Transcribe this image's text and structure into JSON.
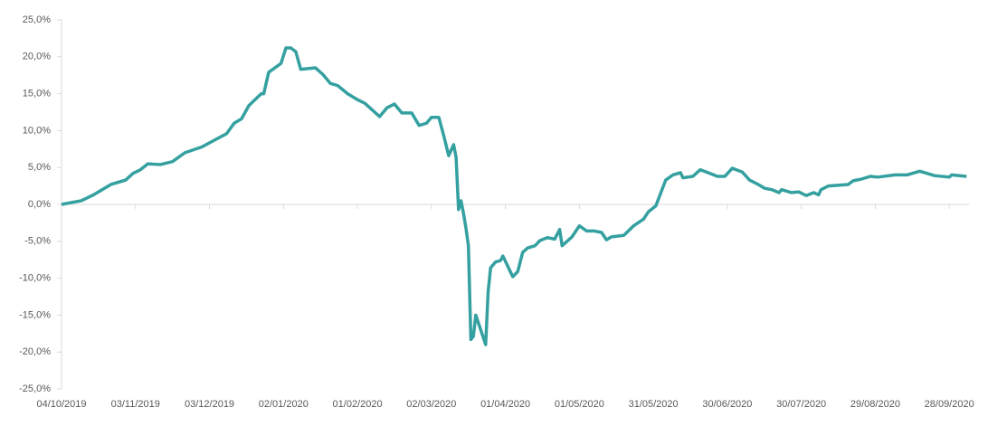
{
  "chart_data": {
    "type": "line",
    "x": [
      "04/10/2019",
      "12/10/2019",
      "17/10/2019",
      "24/10/2019",
      "30/10/2019",
      "02/11/2019",
      "05/11/2019",
      "08/11/2019",
      "13/11/2019",
      "18/11/2019",
      "23/11/2019",
      "30/11/2019",
      "05/12/2019",
      "10/12/2019",
      "13/12/2019",
      "16/12/2019",
      "19/12/2019",
      "24/12/2019",
      "25/12/2019",
      "27/12/2019",
      "01/01/2020",
      "03/01/2020",
      "05/01/2020",
      "07/01/2020",
      "09/01/2020",
      "15/01/2020",
      "18/01/2020",
      "21/01/2020",
      "24/01/2020",
      "28/01/2020",
      "01/02/2020",
      "04/02/2020",
      "10/02/2020",
      "13/02/2020",
      "16/02/2020",
      "19/02/2020",
      "23/02/2020",
      "26/02/2020",
      "29/02/2020",
      "02/03/2020",
      "05/03/2020",
      "07/03/2020",
      "09/03/2020",
      "11/03/2020",
      "12/03/2020",
      "13/03/2020",
      "14/03/2020",
      "15/03/2020",
      "16/03/2020",
      "17/03/2020",
      "18/03/2020",
      "19/03/2020",
      "20/03/2020",
      "22/03/2020",
      "24/03/2020",
      "25/03/2020",
      "26/03/2020",
      "28/03/2020",
      "30/03/2020",
      "31/03/2020",
      "04/04/2020",
      "06/04/2020",
      "08/04/2020",
      "10/04/2020",
      "13/04/2020",
      "15/04/2020",
      "18/04/2020",
      "21/04/2020",
      "23/04/2020",
      "24/04/2020",
      "28/04/2020",
      "01/05/2020",
      "04/05/2020",
      "07/05/2020",
      "10/05/2020",
      "12/05/2020",
      "14/05/2020",
      "19/05/2020",
      "23/05/2020",
      "27/05/2020",
      "29/05/2020",
      "01/06/2020",
      "05/06/2020",
      "08/06/2020",
      "11/06/2020",
      "12/06/2020",
      "16/06/2020",
      "19/06/2020",
      "23/06/2020",
      "26/06/2020",
      "29/06/2020",
      "02/07/2020",
      "06/07/2020",
      "09/07/2020",
      "12/07/2020",
      "15/07/2020",
      "18/07/2020",
      "21/07/2020",
      "22/07/2020",
      "26/07/2020",
      "29/07/2020",
      "01/08/2020",
      "04/08/2020",
      "06/08/2020",
      "07/08/2020",
      "10/08/2020",
      "18/08/2020",
      "20/08/2020",
      "23/08/2020",
      "27/08/2020",
      "30/08/2020",
      "06/09/2020",
      "11/09/2020",
      "16/09/2020",
      "19/09/2020",
      "22/09/2020",
      "28/09/2020",
      "29/09/2020",
      "05/10/2020"
    ],
    "series": [
      {
        "color": "#35a0a0",
        "values": [
          0,
          0.5,
          1.3,
          2.7,
          3.3,
          4.2,
          4.7,
          5.5,
          5.4,
          5.8,
          7.0,
          7.8,
          8.7,
          9.6,
          11.0,
          11.6,
          13.4,
          15.0,
          15.0,
          17.9,
          19.1,
          21.2,
          21.2,
          20.7,
          18.3,
          18.5,
          17.6,
          16.4,
          16.1,
          15.0,
          14.2,
          13.7,
          11.9,
          13.1,
          13.6,
          12.4,
          12.4,
          10.7,
          11.0,
          11.8,
          11.8,
          9.3,
          6.6,
          8.1,
          6.4,
          -0.7,
          0.5,
          -1.2,
          -3.2,
          -5.6,
          -18.3,
          -17.9,
          -15.0,
          -17.0,
          -19.0,
          -11.8,
          -8.6,
          -7.8,
          -7.6,
          -7.0,
          -9.8,
          -9.1,
          -6.5,
          -5.9,
          -5.6,
          -4.9,
          -4.5,
          -4.7,
          -3.4,
          -5.6,
          -4.4,
          -2.9,
          -3.6,
          -3.6,
          -3.8,
          -4.8,
          -4.4,
          -4.2,
          -2.9,
          -2.0,
          -1.0,
          -0.2,
          3.3,
          4.0,
          4.3,
          3.6,
          3.8,
          4.7,
          4.2,
          3.8,
          3.8,
          4.9,
          4.4,
          3.3,
          2.8,
          2.2,
          2.0,
          1.6,
          2.0,
          1.6,
          1.7,
          1.2,
          1.6,
          1.3,
          2.0,
          2.5,
          2.7,
          3.2,
          3.4,
          3.8,
          3.7,
          4.0,
          4.0,
          4.5,
          4.2,
          3.9,
          3.7,
          4.0,
          3.8
        ]
      }
    ],
    "xlim": [
      "04/10/2019",
      "06/10/2020"
    ],
    "xticks": [
      "04/10/2019",
      "03/11/2019",
      "03/12/2019",
      "02/01/2020",
      "01/02/2020",
      "02/03/2020",
      "01/04/2020",
      "01/05/2020",
      "31/05/2020",
      "30/06/2020",
      "30/07/2020",
      "29/08/2020",
      "28/09/2020"
    ],
    "ylim": [
      -25,
      25
    ],
    "yticks": [
      {
        "value": -25,
        "label": "-25,0%"
      },
      {
        "value": -20,
        "label": "-20,0%"
      },
      {
        "value": -15,
        "label": "-15,0%"
      },
      {
        "value": -10,
        "label": "-10,0%"
      },
      {
        "value": -5,
        "label": "-5,0%"
      },
      {
        "value": 0,
        "label": "0,0%"
      },
      {
        "value": 5,
        "label": "5,0%"
      },
      {
        "value": 10,
        "label": "10,0%"
      },
      {
        "value": 15,
        "label": "15,0%"
      },
      {
        "value": 20,
        "label": "20,0%"
      },
      {
        "value": 25,
        "label": "25,0%"
      }
    ]
  }
}
